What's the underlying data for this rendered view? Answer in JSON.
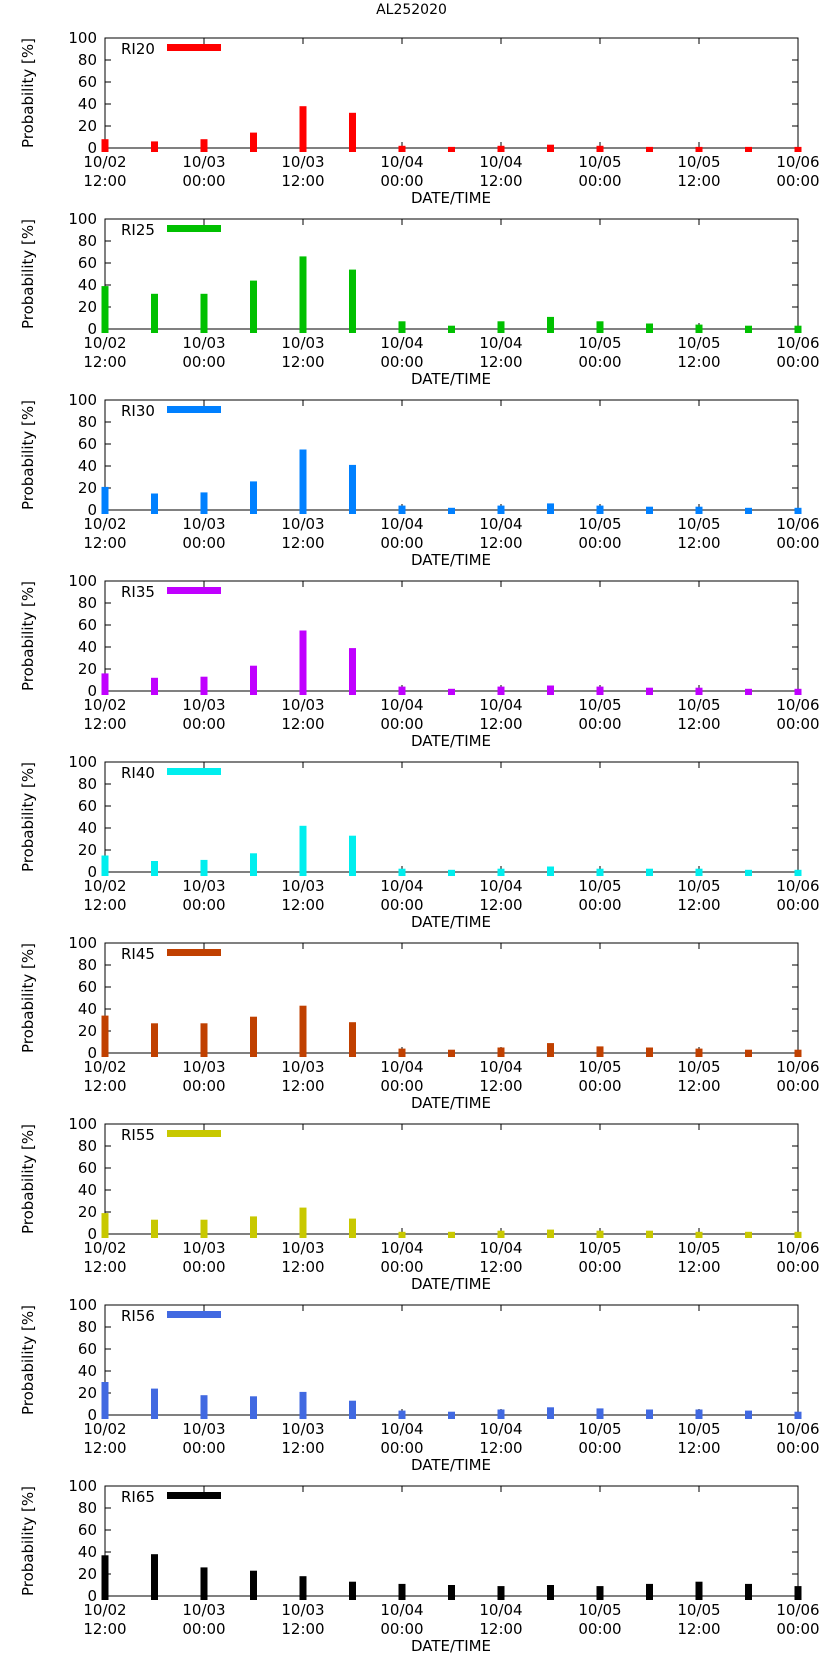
{
  "figure_title": "AL252020",
  "chart_data": [
    {
      "type": "bar",
      "legend": "RI20",
      "color": "#ff0000",
      "xlabel": "DATE/TIME",
      "ylabel": "Probability [%]",
      "ylim": [
        0,
        100
      ],
      "yticks": [
        "0",
        "20",
        "40",
        "60",
        "80",
        "100"
      ],
      "xticks": [
        [
          "10/02",
          "12:00"
        ],
        [
          "10/03",
          "00:00"
        ],
        [
          "10/03",
          "12:00"
        ],
        [
          "10/04",
          "00:00"
        ],
        [
          "10/04",
          "12:00"
        ],
        [
          "10/05",
          "00:00"
        ],
        [
          "10/05",
          "12:00"
        ],
        [
          "10/06",
          "00:00"
        ]
      ],
      "x_hours": [
        0,
        6,
        12,
        18,
        24,
        30,
        36,
        42,
        48,
        54,
        60,
        66,
        72,
        78,
        84
      ],
      "values": [
        8,
        6,
        8,
        14,
        38,
        32,
        2,
        1,
        2,
        3,
        2,
        1,
        1,
        1,
        1
      ]
    },
    {
      "type": "bar",
      "legend": "RI25",
      "color": "#00c000",
      "xlabel": "DATE/TIME",
      "ylabel": "Probability [%]",
      "ylim": [
        0,
        100
      ],
      "yticks": [
        "0",
        "20",
        "40",
        "60",
        "80",
        "100"
      ],
      "xticks": [
        [
          "10/02",
          "12:00"
        ],
        [
          "10/03",
          "00:00"
        ],
        [
          "10/03",
          "12:00"
        ],
        [
          "10/04",
          "00:00"
        ],
        [
          "10/04",
          "12:00"
        ],
        [
          "10/05",
          "00:00"
        ],
        [
          "10/05",
          "12:00"
        ],
        [
          "10/06",
          "00:00"
        ]
      ],
      "x_hours": [
        0,
        6,
        12,
        18,
        24,
        30,
        36,
        42,
        48,
        54,
        60,
        66,
        72,
        78,
        84
      ],
      "values": [
        39,
        32,
        32,
        44,
        66,
        54,
        7,
        3,
        7,
        11,
        7,
        5,
        4,
        3,
        3
      ]
    },
    {
      "type": "bar",
      "legend": "RI30",
      "color": "#0080ff",
      "xlabel": "DATE/TIME",
      "ylabel": "Probability [%]",
      "ylim": [
        0,
        100
      ],
      "yticks": [
        "0",
        "20",
        "40",
        "60",
        "80",
        "100"
      ],
      "xticks": [
        [
          "10/02",
          "12:00"
        ],
        [
          "10/03",
          "00:00"
        ],
        [
          "10/03",
          "12:00"
        ],
        [
          "10/04",
          "00:00"
        ],
        [
          "10/04",
          "12:00"
        ],
        [
          "10/05",
          "00:00"
        ],
        [
          "10/05",
          "12:00"
        ],
        [
          "10/06",
          "00:00"
        ]
      ],
      "x_hours": [
        0,
        6,
        12,
        18,
        24,
        30,
        36,
        42,
        48,
        54,
        60,
        66,
        72,
        78,
        84
      ],
      "values": [
        21,
        15,
        16,
        26,
        55,
        41,
        4,
        2,
        4,
        6,
        4,
        3,
        3,
        2,
        2
      ]
    },
    {
      "type": "bar",
      "legend": "RI35",
      "color": "#c000ff",
      "xlabel": "DATE/TIME",
      "ylabel": "Probability [%]",
      "ylim": [
        0,
        100
      ],
      "yticks": [
        "0",
        "20",
        "40",
        "60",
        "80",
        "100"
      ],
      "xticks": [
        [
          "10/02",
          "12:00"
        ],
        [
          "10/03",
          "00:00"
        ],
        [
          "10/03",
          "12:00"
        ],
        [
          "10/04",
          "00:00"
        ],
        [
          "10/04",
          "12:00"
        ],
        [
          "10/05",
          "00:00"
        ],
        [
          "10/05",
          "12:00"
        ],
        [
          "10/06",
          "00:00"
        ]
      ],
      "x_hours": [
        0,
        6,
        12,
        18,
        24,
        30,
        36,
        42,
        48,
        54,
        60,
        66,
        72,
        78,
        84
      ],
      "values": [
        16,
        12,
        13,
        23,
        55,
        39,
        4,
        2,
        4,
        5,
        4,
        3,
        3,
        2,
        2
      ]
    },
    {
      "type": "bar",
      "legend": "RI40",
      "color": "#00eeee",
      "xlabel": "DATE/TIME",
      "ylabel": "Probability [%]",
      "ylim": [
        0,
        100
      ],
      "yticks": [
        "0",
        "20",
        "40",
        "60",
        "80",
        "100"
      ],
      "xticks": [
        [
          "10/02",
          "12:00"
        ],
        [
          "10/03",
          "00:00"
        ],
        [
          "10/03",
          "12:00"
        ],
        [
          "10/04",
          "00:00"
        ],
        [
          "10/04",
          "12:00"
        ],
        [
          "10/05",
          "00:00"
        ],
        [
          "10/05",
          "12:00"
        ],
        [
          "10/06",
          "00:00"
        ]
      ],
      "x_hours": [
        0,
        6,
        12,
        18,
        24,
        30,
        36,
        42,
        48,
        54,
        60,
        66,
        72,
        78,
        84
      ],
      "values": [
        15,
        10,
        11,
        17,
        42,
        33,
        3,
        2,
        3,
        5,
        3,
        3,
        3,
        2,
        2
      ]
    },
    {
      "type": "bar",
      "legend": "RI45",
      "color": "#c04000",
      "xlabel": "DATE/TIME",
      "ylabel": "Probability [%]",
      "ylim": [
        0,
        100
      ],
      "yticks": [
        "0",
        "20",
        "40",
        "60",
        "80",
        "100"
      ],
      "xticks": [
        [
          "10/02",
          "12:00"
        ],
        [
          "10/03",
          "00:00"
        ],
        [
          "10/03",
          "12:00"
        ],
        [
          "10/04",
          "00:00"
        ],
        [
          "10/04",
          "12:00"
        ],
        [
          "10/05",
          "00:00"
        ],
        [
          "10/05",
          "12:00"
        ],
        [
          "10/06",
          "00:00"
        ]
      ],
      "x_hours": [
        0,
        6,
        12,
        18,
        24,
        30,
        36,
        42,
        48,
        54,
        60,
        66,
        72,
        78,
        84
      ],
      "values": [
        34,
        27,
        27,
        33,
        43,
        28,
        4,
        3,
        5,
        9,
        6,
        5,
        4,
        3,
        3
      ]
    },
    {
      "type": "bar",
      "legend": "RI55",
      "color": "#c8c800",
      "xlabel": "DATE/TIME",
      "ylabel": "Probability [%]",
      "ylim": [
        0,
        100
      ],
      "yticks": [
        "0",
        "20",
        "40",
        "60",
        "80",
        "100"
      ],
      "xticks": [
        [
          "10/02",
          "12:00"
        ],
        [
          "10/03",
          "00:00"
        ],
        [
          "10/03",
          "12:00"
        ],
        [
          "10/04",
          "00:00"
        ],
        [
          "10/04",
          "12:00"
        ],
        [
          "10/05",
          "00:00"
        ],
        [
          "10/05",
          "12:00"
        ],
        [
          "10/06",
          "00:00"
        ]
      ],
      "x_hours": [
        0,
        6,
        12,
        18,
        24,
        30,
        36,
        42,
        48,
        54,
        60,
        66,
        72,
        78,
        84
      ],
      "values": [
        19,
        13,
        13,
        16,
        24,
        14,
        2,
        2,
        3,
        4,
        3,
        3,
        2,
        2,
        2
      ]
    },
    {
      "type": "bar",
      "legend": "RI56",
      "color": "#4169e1",
      "xlabel": "DATE/TIME",
      "ylabel": "Probability [%]",
      "ylim": [
        0,
        100
      ],
      "yticks": [
        "0",
        "20",
        "40",
        "60",
        "80",
        "100"
      ],
      "xticks": [
        [
          "10/02",
          "12:00"
        ],
        [
          "10/03",
          "00:00"
        ],
        [
          "10/03",
          "12:00"
        ],
        [
          "10/04",
          "00:00"
        ],
        [
          "10/04",
          "12:00"
        ],
        [
          "10/05",
          "00:00"
        ],
        [
          "10/05",
          "12:00"
        ],
        [
          "10/06",
          "00:00"
        ]
      ],
      "x_hours": [
        0,
        6,
        12,
        18,
        24,
        30,
        36,
        42,
        48,
        54,
        60,
        66,
        72,
        78,
        84
      ],
      "values": [
        30,
        24,
        18,
        17,
        21,
        13,
        4,
        3,
        5,
        7,
        6,
        5,
        5,
        4,
        3
      ]
    },
    {
      "type": "bar",
      "legend": "RI65",
      "color": "#000000",
      "xlabel": "DATE/TIME",
      "ylabel": "Probability [%]",
      "ylim": [
        0,
        100
      ],
      "yticks": [
        "0",
        "20",
        "40",
        "60",
        "80",
        "100"
      ],
      "xticks": [
        [
          "10/02",
          "12:00"
        ],
        [
          "10/03",
          "00:00"
        ],
        [
          "10/03",
          "12:00"
        ],
        [
          "10/04",
          "00:00"
        ],
        [
          "10/04",
          "12:00"
        ],
        [
          "10/05",
          "00:00"
        ],
        [
          "10/05",
          "12:00"
        ],
        [
          "10/06",
          "00:00"
        ]
      ],
      "x_hours": [
        0,
        6,
        12,
        18,
        24,
        30,
        36,
        42,
        48,
        54,
        60,
        66,
        72,
        78,
        84
      ],
      "values": [
        37,
        38,
        26,
        23,
        18,
        13,
        11,
        10,
        9,
        10,
        9,
        11,
        13,
        11,
        9
      ]
    }
  ]
}
